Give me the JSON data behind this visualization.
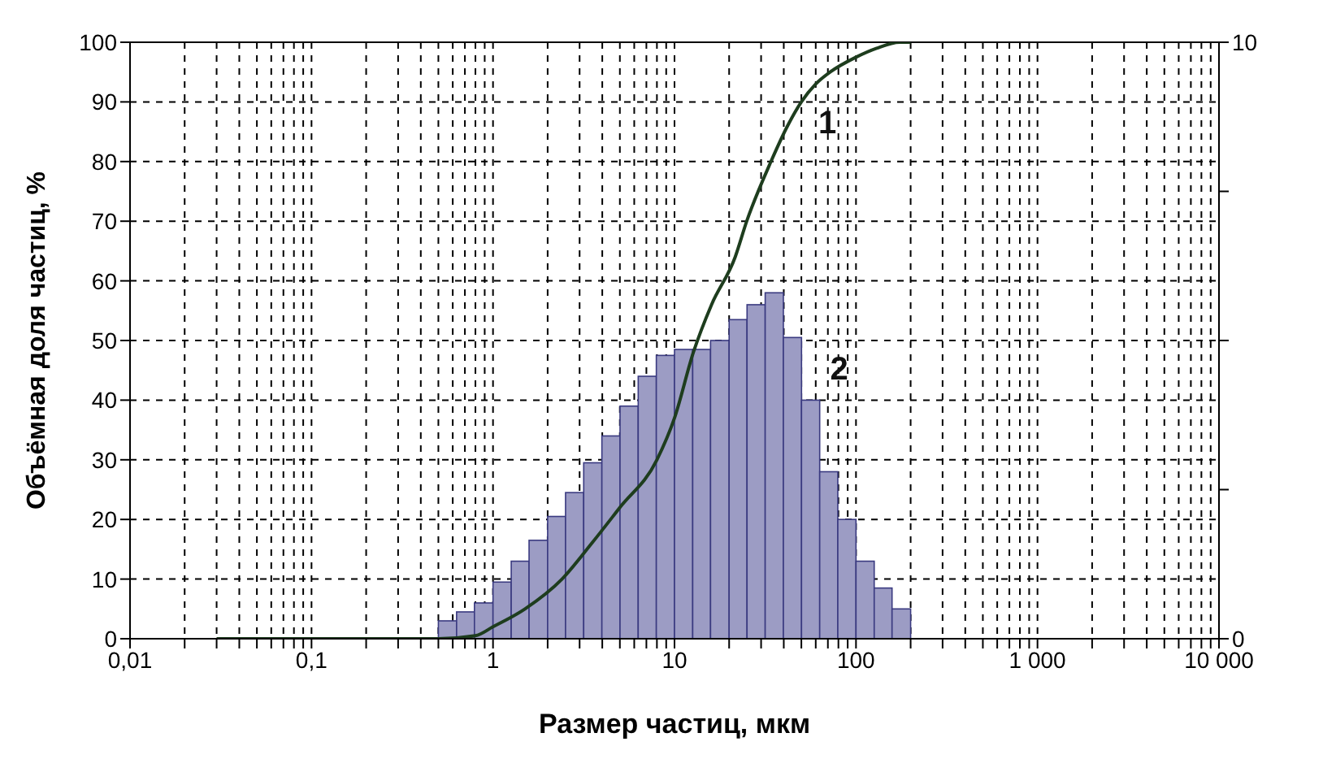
{
  "chart_data": {
    "type": "line",
    "xlabel": "Размер частиц, мкм",
    "ylabel": "Объёмная доля частиц, %",
    "log": "x",
    "xlim": [
      0.01,
      10000
    ],
    "xticks": [
      {
        "value": 0.01,
        "label": "0,01"
      },
      {
        "value": 0.02,
        "label": null
      },
      {
        "value": 0.03,
        "label": null
      },
      {
        "value": 0.04,
        "label": null
      },
      {
        "value": 0.05,
        "label": null
      },
      {
        "value": 0.06,
        "label": null
      },
      {
        "value": 0.07,
        "label": null
      },
      {
        "value": 0.08,
        "label": null
      },
      {
        "value": 0.09,
        "label": null
      },
      {
        "value": 0.1,
        "label": "0,1"
      },
      {
        "value": 0.2,
        "label": null
      },
      {
        "value": 0.3,
        "label": null
      },
      {
        "value": 0.4,
        "label": null
      },
      {
        "value": 0.5,
        "label": null
      },
      {
        "value": 0.6,
        "label": null
      },
      {
        "value": 0.7,
        "label": null
      },
      {
        "value": 0.8,
        "label": null
      },
      {
        "value": 0.9,
        "label": null
      },
      {
        "value": 1,
        "label": "1"
      },
      {
        "value": 2,
        "label": null
      },
      {
        "value": 3,
        "label": null
      },
      {
        "value": 4,
        "label": null
      },
      {
        "value": 5,
        "label": null
      },
      {
        "value": 6,
        "label": null
      },
      {
        "value": 7,
        "label": null
      },
      {
        "value": 8,
        "label": null
      },
      {
        "value": 9,
        "label": null
      },
      {
        "value": 10,
        "label": "10"
      },
      {
        "value": 20,
        "label": null
      },
      {
        "value": 30,
        "label": null
      },
      {
        "value": 40,
        "label": null
      },
      {
        "value": 50,
        "label": null
      },
      {
        "value": 60,
        "label": null
      },
      {
        "value": 70,
        "label": null
      },
      {
        "value": 80,
        "label": null
      },
      {
        "value": 90,
        "label": null
      },
      {
        "value": 100,
        "label": "100"
      },
      {
        "value": 200,
        "label": null
      },
      {
        "value": 300,
        "label": null
      },
      {
        "value": 400,
        "label": null
      },
      {
        "value": 500,
        "label": null
      },
      {
        "value": 600,
        "label": null
      },
      {
        "value": 700,
        "label": null
      },
      {
        "value": 800,
        "label": null
      },
      {
        "value": 900,
        "label": null
      },
      {
        "value": 1000,
        "label": "1 000"
      },
      {
        "value": 2000,
        "label": null
      },
      {
        "value": 3000,
        "label": null
      },
      {
        "value": 4000,
        "label": null
      },
      {
        "value": 5000,
        "label": null
      },
      {
        "value": 6000,
        "label": null
      },
      {
        "value": 7000,
        "label": null
      },
      {
        "value": 8000,
        "label": null
      },
      {
        "value": 9000,
        "label": null
      },
      {
        "value": 10000,
        "label": "10 000"
      }
    ],
    "ylim": [
      0,
      100
    ],
    "yticks": [
      0,
      10,
      20,
      30,
      40,
      50,
      60,
      70,
      80,
      90,
      100
    ],
    "y2lim": [
      0,
      10
    ],
    "y2ticks": [
      0,
      {
        "value": 2.5,
        "label": null
      },
      {
        "value": 5,
        "label": null
      },
      {
        "value": 7.5,
        "label": null
      },
      10
    ],
    "grid": true,
    "series": [
      {
        "name": "1",
        "color": "#1e3d1e",
        "marker": "none",
        "line_style": "solid",
        "x": [
          0.03,
          0.5,
          0.8,
          1,
          1.5,
          2.4,
          3.5,
          5,
          8,
          10,
          12.7,
          16,
          21.6,
          25,
          34,
          42,
          50,
          60,
          72,
          100,
          130,
          174,
          200
        ],
        "values": [
          0,
          0,
          0.5,
          2,
          5,
          10,
          16,
          22,
          30,
          37,
          48,
          56,
          64,
          70,
          80,
          86,
          90,
          93,
          95,
          97.5,
          99,
          100,
          100
        ]
      },
      {
        "name": "2",
        "type": "histogram",
        "axis": "y2",
        "color": "#9c9cc4",
        "bins": [
          0.5,
          0.63,
          0.79,
          1,
          1.26,
          1.58,
          2,
          2.51,
          3.16,
          3.98,
          5.01,
          6.31,
          7.94,
          10,
          12.6,
          15.8,
          20,
          25.1,
          31.6,
          39.8,
          50.1,
          63.1,
          79.4,
          100,
          126,
          158,
          200
        ],
        "values": [
          0.3,
          0.45,
          0.6,
          0.95,
          1.3,
          1.65,
          2.05,
          2.45,
          2.95,
          3.4,
          3.9,
          4.4,
          4.75,
          4.85,
          4.85,
          5,
          5.35,
          5.6,
          5.8,
          5.05,
          4,
          2.8,
          2,
          1.3,
          0.85,
          0.5
        ]
      }
    ]
  }
}
